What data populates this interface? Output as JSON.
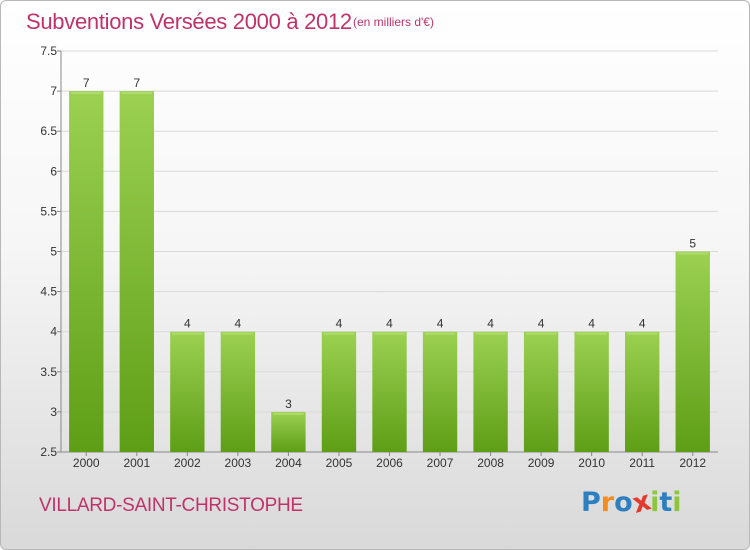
{
  "header": {
    "title": "Subventions Versées 2000 à 2012",
    "subtitle": "(en milliers d'€)"
  },
  "footer": {
    "place": "VILLARD-SAINT-CHRISTOPHE",
    "logo_letters": [
      {
        "ch": "P",
        "color": "#2e7fc0"
      },
      {
        "ch": "r",
        "color": "#f28c1e"
      },
      {
        "ch": "o",
        "color": "#2e7fc0"
      },
      {
        "ch": "x",
        "color": "#e23b2e"
      },
      {
        "ch": "i",
        "color": "#8cc63f"
      },
      {
        "ch": "t",
        "color": "#2e7fc0"
      },
      {
        "ch": "i",
        "color": "#8cc63f"
      }
    ]
  },
  "chart_data": {
    "type": "bar",
    "categories": [
      "2000",
      "2001",
      "2002",
      "2003",
      "2004",
      "2005",
      "2006",
      "2007",
      "2008",
      "2009",
      "2010",
      "2011",
      "2012"
    ],
    "values": [
      7,
      7,
      4,
      4,
      3,
      4,
      4,
      4,
      4,
      4,
      4,
      4,
      5
    ],
    "title": "Subventions Versées 2000 à 2012",
    "ylim": [
      2.5,
      7.5
    ],
    "yticks": [
      "2.5",
      "3",
      "3.5",
      "4",
      "4.5",
      "5",
      "5.5",
      "6",
      "6.5",
      "7",
      "7.5"
    ],
    "grid": true,
    "bar_color_top": "#9cd152",
    "bar_color_bottom": "#5e9e16",
    "grid_color": "#d9d9d9",
    "text_color": "#333333"
  }
}
